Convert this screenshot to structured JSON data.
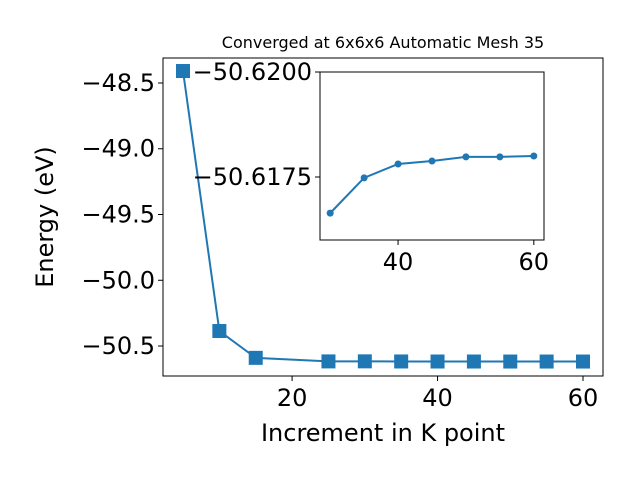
{
  "chart_data": [
    {
      "type": "line",
      "title": "Converged at 6x6x6 Automatic Mesh 35",
      "x_label": "Increment in K point",
      "y_label": "Energy (eV)",
      "x": [
        5,
        10,
        15,
        25,
        30,
        35,
        40,
        45,
        50,
        55,
        60
      ],
      "series": [
        {
          "name": "Energy",
          "color": "#1f77b4",
          "marker": "square",
          "values": [
            -48.409,
            -50.386,
            -50.59,
            -50.617,
            -50.6166,
            -50.6175,
            -50.6178,
            -50.6179,
            -50.618,
            -50.618,
            -50.618
          ]
        }
      ],
      "xlim": [
        2.25,
        62.75
      ],
      "xticks": [
        20,
        40,
        60
      ],
      "ylim": [
        -50.728,
        -48.31
      ],
      "yticks": [
        {
          "value": -48.5,
          "label": "−48.5"
        },
        {
          "value": -49.0,
          "label": "−49.0"
        },
        {
          "value": -49.5,
          "label": "−49.5"
        },
        {
          "value": -50.0,
          "label": "−50.0"
        },
        {
          "value": -50.5,
          "label": "−50.5"
        }
      ]
    },
    {
      "type": "line",
      "x": [
        30,
        35,
        40,
        45,
        50,
        55,
        60
      ],
      "series": [
        {
          "name": "Energy",
          "color": "#1f77b4",
          "marker": "circle",
          "values": [
            -50.61664,
            -50.61748,
            -50.61781,
            -50.61788,
            -50.61798,
            -50.61798,
            -50.618
          ]
        }
      ],
      "xlim": [
        28.5,
        61.5
      ],
      "xticks": [
        40,
        60
      ],
      "ylim": [
        -50.616,
        -50.62
      ],
      "yticks": [
        {
          "value": -50.62,
          "label": "−50.6200"
        },
        {
          "value": -50.6175,
          "label": "−50.6175"
        }
      ]
    }
  ]
}
